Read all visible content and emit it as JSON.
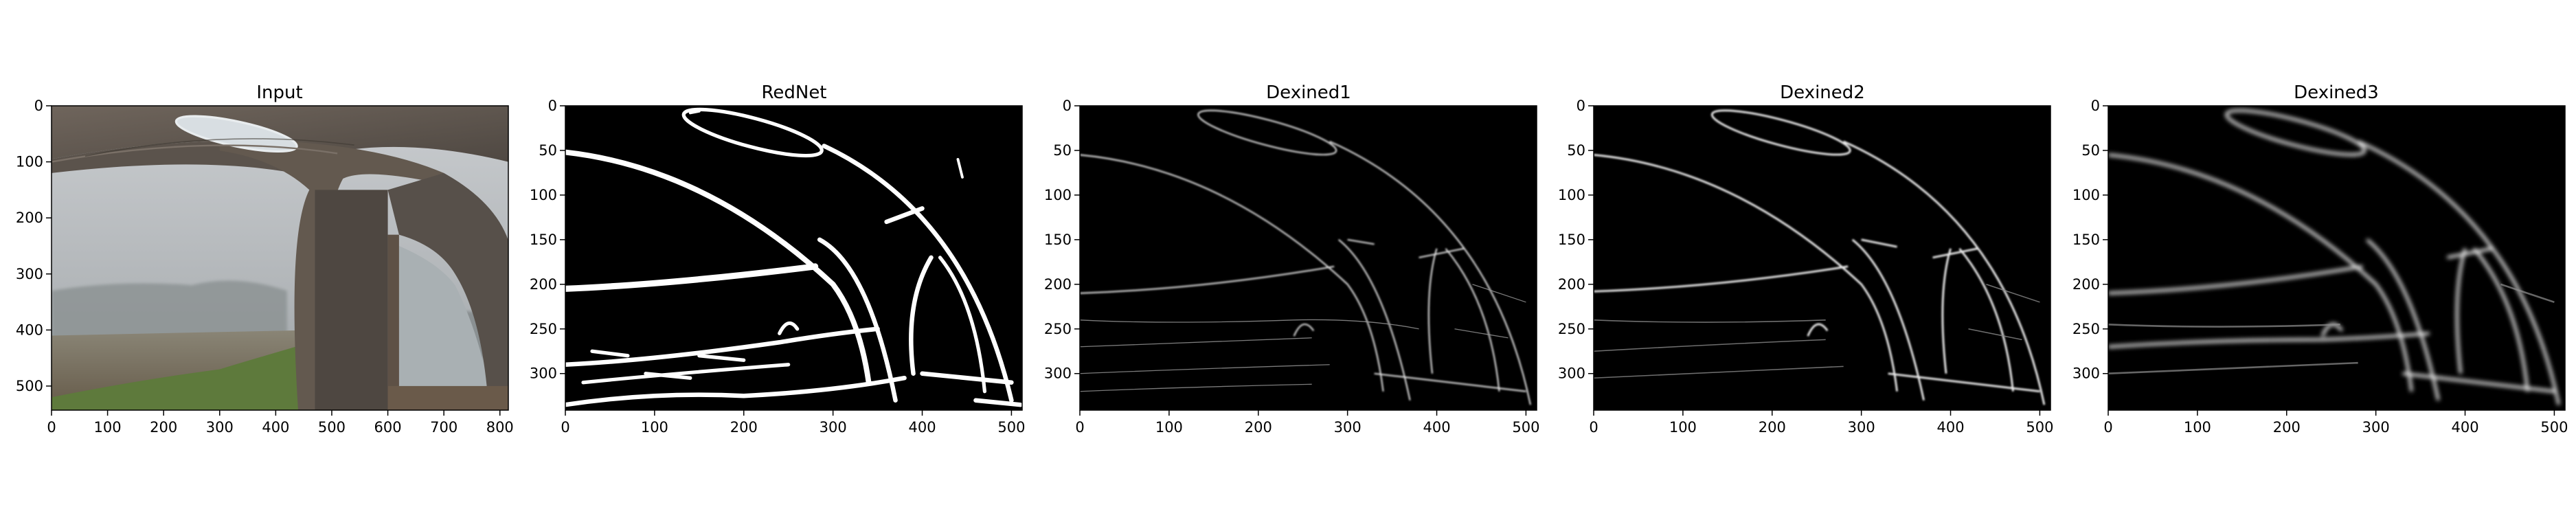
{
  "figure": {
    "panels": [
      {
        "id": "input",
        "title": "Input",
        "kind": "photo",
        "xticks": [
          "0",
          "100",
          "200",
          "300",
          "400",
          "500",
          "600",
          "700",
          "800"
        ],
        "xtick_values": [
          0,
          100,
          200,
          300,
          400,
          500,
          600,
          700,
          800
        ],
        "x_extent": [
          0,
          815
        ],
        "yticks": [
          "0",
          "100",
          "200",
          "300",
          "400",
          "500"
        ],
        "ytick_values": [
          0,
          100,
          200,
          300,
          400,
          500
        ],
        "y_extent": [
          0,
          543
        ]
      },
      {
        "id": "rednet",
        "title": "RedNet",
        "kind": "edge",
        "xticks": [
          "0",
          "100",
          "200",
          "300",
          "400",
          "500"
        ],
        "xtick_values": [
          0,
          100,
          200,
          300,
          400,
          500
        ],
        "x_extent": [
          0,
          512
        ],
        "yticks": [
          "0",
          "50",
          "100",
          "150",
          "200",
          "250",
          "300"
        ],
        "ytick_values": [
          0,
          50,
          100,
          150,
          200,
          250,
          300
        ],
        "y_extent": [
          0,
          341
        ]
      },
      {
        "id": "dexined1",
        "title": "Dexined1",
        "kind": "edge",
        "xticks": [
          "0",
          "100",
          "200",
          "300",
          "400",
          "500"
        ],
        "xtick_values": [
          0,
          100,
          200,
          300,
          400,
          500
        ],
        "x_extent": [
          0,
          512
        ],
        "yticks": [
          "0",
          "50",
          "100",
          "150",
          "200",
          "250",
          "300"
        ],
        "ytick_values": [
          0,
          50,
          100,
          150,
          200,
          250,
          300
        ],
        "y_extent": [
          0,
          341
        ]
      },
      {
        "id": "dexined2",
        "title": "Dexined2",
        "kind": "edge",
        "xticks": [
          "0",
          "100",
          "200",
          "300",
          "400",
          "500"
        ],
        "xtick_values": [
          0,
          100,
          200,
          300,
          400,
          500
        ],
        "x_extent": [
          0,
          512
        ],
        "yticks": [
          "0",
          "50",
          "100",
          "150",
          "200",
          "250",
          "300"
        ],
        "ytick_values": [
          0,
          50,
          100,
          150,
          200,
          250,
          300
        ],
        "y_extent": [
          0,
          341
        ]
      },
      {
        "id": "dexined3",
        "title": "Dexined3",
        "kind": "edge",
        "xticks": [
          "0",
          "100",
          "200",
          "300",
          "400",
          "500"
        ],
        "xtick_values": [
          0,
          100,
          200,
          300,
          400,
          500
        ],
        "x_extent": [
          0,
          512
        ],
        "yticks": [
          "0",
          "50",
          "100",
          "150",
          "200",
          "250",
          "300"
        ],
        "ytick_values": [
          0,
          50,
          100,
          150,
          200,
          250,
          300
        ],
        "y_extent": [
          0,
          341
        ]
      }
    ]
  }
}
